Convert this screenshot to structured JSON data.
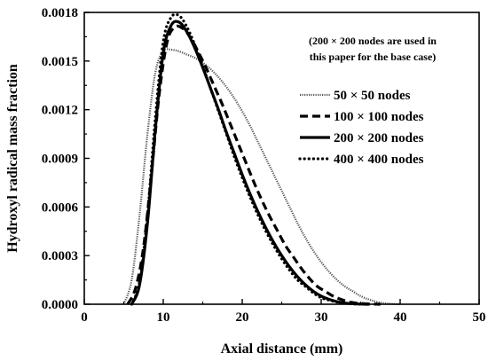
{
  "chart_data": {
    "type": "line",
    "xlabel": "Axial distance (mm)",
    "ylabel": "Hydroxyl radical mass fraction",
    "xlim": [
      0,
      50
    ],
    "ylim": [
      0,
      0.0018
    ],
    "x_ticks": [
      "0",
      "10",
      "20",
      "30",
      "40",
      "50"
    ],
    "y_ticks": [
      "0.0000",
      "0.0003",
      "0.0006",
      "0.0009",
      "0.0012",
      "0.0015",
      "0.0018"
    ],
    "grid": false,
    "legend_position": "right",
    "annotation_lines": [
      "(200 × 200 nodes are used in",
      "this paper for the base case)"
    ],
    "series": [
      {
        "name": "50 × 50 nodes",
        "style": "thin-crosshatch",
        "color": "#555555",
        "x": [
          5.0,
          6,
          7,
          8,
          9,
          10,
          11,
          12,
          13,
          14,
          15,
          16,
          17,
          18,
          19,
          20,
          21,
          22,
          23,
          24,
          25,
          26,
          27,
          28,
          29,
          30,
          31,
          32,
          33,
          34,
          35,
          36,
          37,
          38,
          39,
          40
        ],
        "y": [
          0.0,
          0.00015,
          0.00055,
          0.00105,
          0.00143,
          0.00156,
          0.00157,
          0.00156,
          0.00154,
          0.00152,
          0.00149,
          0.00145,
          0.0014,
          0.00134,
          0.00127,
          0.00119,
          0.0011,
          0.001,
          0.0009,
          0.0008,
          0.0007,
          0.0006,
          0.0005,
          0.00041,
          0.00033,
          0.00026,
          0.0002,
          0.00015,
          0.00011,
          8e-05,
          5e-05,
          3e-05,
          1.5e-05,
          6e-06,
          2e-06,
          0.0
        ]
      },
      {
        "name": "100 × 100 nodes",
        "style": "dashed",
        "color": "#000000",
        "x": [
          5.5,
          6.5,
          7.5,
          8.5,
          9.5,
          10.5,
          11.5,
          12.5,
          13.5,
          14.5,
          15.5,
          16.5,
          17.5,
          18.5,
          19.5,
          20.5,
          21.5,
          22.5,
          23.5,
          24.5,
          25.5,
          26.5,
          27.5,
          28.5,
          29.5,
          30.5,
          31.5,
          32.5,
          33.5,
          34.5,
          35.5,
          36.5,
          37.5
        ],
        "y": [
          0.0,
          0.0001,
          0.00035,
          0.0008,
          0.0013,
          0.00162,
          0.00171,
          0.0017,
          0.00164,
          0.00155,
          0.00145,
          0.00134,
          0.00123,
          0.00111,
          0.00099,
          0.00087,
          0.00075,
          0.00064,
          0.00054,
          0.00045,
          0.00036,
          0.00029,
          0.00022,
          0.00016,
          0.00011,
          8e-05,
          5e-05,
          3e-05,
          1.5e-05,
          7e-06,
          3e-06,
          1e-06,
          0.0
        ]
      },
      {
        "name": "200 × 200 nodes",
        "style": "solid-thick",
        "color": "#000000",
        "x": [
          6.0,
          7,
          8,
          9,
          10,
          11,
          12,
          13,
          14,
          15,
          16,
          17,
          18,
          19,
          20,
          21,
          22,
          23,
          24,
          25,
          26,
          27,
          28,
          29,
          30,
          31,
          32,
          33,
          34,
          35,
          36
        ],
        "y": [
          0.0,
          0.00012,
          0.0005,
          0.00108,
          0.00155,
          0.00172,
          0.00174,
          0.00168,
          0.00158,
          0.00146,
          0.00133,
          0.0012,
          0.00106,
          0.00093,
          0.0008,
          0.00068,
          0.00057,
          0.00047,
          0.00038,
          0.0003,
          0.00023,
          0.00017,
          0.00012,
          8e-05,
          5e-05,
          3e-05,
          1.6e-05,
          7e-06,
          3e-06,
          1e-06,
          0.0
        ]
      },
      {
        "name": "400 × 400 nodes",
        "style": "dotted",
        "color": "#000000",
        "x": [
          6.0,
          7,
          8,
          9,
          10,
          11,
          12,
          13,
          14,
          15,
          16,
          17,
          18,
          19,
          20,
          21,
          22,
          23,
          24,
          25,
          26,
          27,
          28,
          29,
          30,
          31,
          32,
          33,
          34,
          35,
          36
        ],
        "y": [
          0.0,
          0.00014,
          0.00055,
          0.00115,
          0.00162,
          0.00177,
          0.00178,
          0.00171,
          0.0016,
          0.00147,
          0.00133,
          0.00119,
          0.00105,
          0.00091,
          0.00078,
          0.00066,
          0.00055,
          0.00045,
          0.00036,
          0.00028,
          0.00021,
          0.00015,
          0.00011,
          7e-05,
          4e-05,
          2.5e-05,
          1.3e-05,
          6e-06,
          2e-06,
          1e-06,
          0.0
        ]
      }
    ]
  }
}
